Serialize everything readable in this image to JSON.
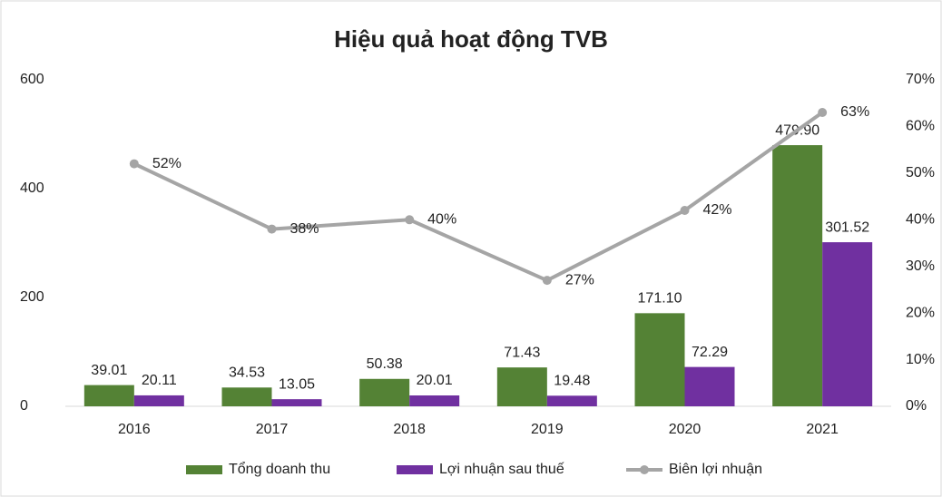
{
  "chart_data": {
    "type": "combo",
    "title": "Hiệu quả hoạt động TVB",
    "categories": [
      "2016",
      "2017",
      "2018",
      "2019",
      "2020",
      "2021"
    ],
    "series": [
      {
        "name": "Tổng doanh thu",
        "type": "bar",
        "color": "#548235",
        "values": [
          39.01,
          34.53,
          50.38,
          71.43,
          171.1,
          479.9
        ],
        "value_labels": [
          "39.01",
          "34.53",
          "50.38",
          "71.43",
          "171.10",
          "479.90"
        ]
      },
      {
        "name": "Lợi nhuận sau thuế",
        "type": "bar",
        "color": "#7030a0",
        "values": [
          20.11,
          13.05,
          20.01,
          19.48,
          72.29,
          301.52
        ],
        "value_labels": [
          "20.11",
          "13.05",
          "20.01",
          "19.48",
          "72.29",
          "301.52"
        ]
      },
      {
        "name": "Biên lợi nhuận",
        "type": "line",
        "axis": "y2",
        "color": "#a5a5a5",
        "values": [
          52,
          38,
          40,
          27,
          42,
          63
        ],
        "value_labels": [
          "52%",
          "38%",
          "40%",
          "27%",
          "42%",
          "63%"
        ]
      }
    ],
    "ylim": [
      0,
      600
    ],
    "yticks": [
      0,
      200,
      400,
      600
    ],
    "y2lim": [
      0,
      70
    ],
    "y2ticks": [
      {
        "value": 0,
        "label": "0%"
      },
      {
        "value": 10,
        "label": "10%"
      },
      {
        "value": 20,
        "label": "20%"
      },
      {
        "value": 30,
        "label": "30%"
      },
      {
        "value": 40,
        "label": "40%"
      },
      {
        "value": 50,
        "label": "50%"
      },
      {
        "value": 60,
        "label": "60%"
      },
      {
        "value": 70,
        "label": "70%"
      }
    ],
    "legend": "bottom"
  }
}
